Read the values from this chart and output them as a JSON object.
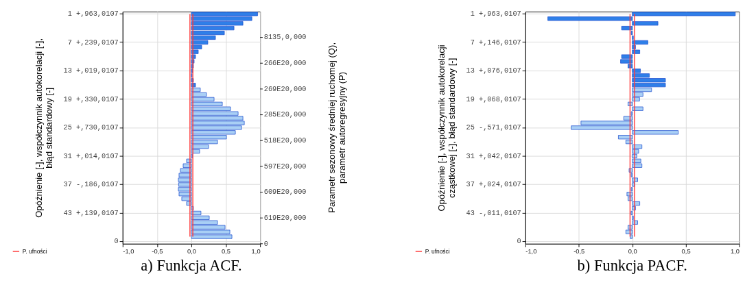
{
  "chart_data": [
    {
      "type": "bar",
      "orientation": "horizontal",
      "title": "a)   Funkcja ACF.",
      "ylabel": "Opóźnienie [-], współczynnik autokorelacji [-],\nbłąd standardowy [-]",
      "y2label": "Parametr sezonowy średniej ruchomej (Q),\nparametr autoregresyjny (P)",
      "categories": [
        "1  +,963,0107",
        null,
        null,
        null,
        null,
        null,
        "7  +,239,0107",
        null,
        null,
        null,
        null,
        null,
        "13  +,019,0107",
        null,
        null,
        null,
        null,
        null,
        "19  +,330,0107",
        null,
        null,
        null,
        null,
        null,
        "25  +,730,0107",
        null,
        null,
        null,
        null,
        null,
        "31  +,014,0107",
        null,
        null,
        null,
        null,
        null,
        "37  -,186,0107",
        null,
        null,
        null,
        null,
        null,
        "43  +,139,0107",
        null,
        null,
        null,
        null,
        null,
        "0"
      ],
      "values": [
        0.963,
        0.88,
        0.75,
        0.62,
        0.48,
        0.35,
        0.239,
        0.15,
        0.1,
        0.06,
        0.04,
        0.03,
        0.019,
        0.01,
        0.03,
        0.06,
        0.13,
        0.22,
        0.33,
        0.45,
        0.57,
        0.68,
        0.75,
        0.77,
        0.73,
        0.64,
        0.51,
        0.38,
        0.25,
        0.12,
        0.014,
        -0.07,
        -0.12,
        -0.16,
        -0.18,
        -0.19,
        -0.186,
        -0.19,
        -0.18,
        -0.14,
        -0.07,
        0.03,
        0.139,
        0.26,
        0.38,
        0.49,
        0.56,
        0.59,
        null
      ],
      "colors": [
        "#2f7fe8",
        "#2f7fe8",
        "#2f7fe8",
        "#2f7fe8",
        "#2f7fe8",
        "#2f7fe8",
        "#2f7fe8",
        "#2f7fe8",
        "#2f7fe8",
        "#2f7fe8",
        "#2f7fe8",
        "#2f7fe8",
        "#2f7fe8",
        "#2f7fe8",
        "#2f7fe8",
        "#2f7fe8",
        "#a9cff5",
        "#a9cff5",
        "#a9cff5",
        "#a9cff5",
        "#a9cff5",
        "#a9cff5",
        "#a9cff5",
        "#a9cff5",
        "#a9cff5",
        "#a9cff5",
        "#a9cff5",
        "#a9cff5",
        "#a9cff5",
        "#a9cff5",
        "#a9cff5",
        "#a9cff5",
        "#a9cff5",
        "#a9cff5",
        "#a9cff5",
        "#a9cff5",
        "#a9cff5",
        "#a9cff5",
        "#a9cff5",
        "#a9cff5",
        "#a9cff5",
        "#a9cff5",
        "#a9cff5",
        "#a9cff5",
        "#a9cff5",
        "#a9cff5",
        "#a9cff5",
        "#a9cff5",
        "#a9cff5"
      ],
      "xlim": [
        -1,
        1
      ],
      "xticks": [
        {
          "value": -1,
          "label": "-1,0"
        },
        {
          "value": -0.5,
          "label": "-0,5"
        },
        {
          "value": 0,
          "label": "0,0"
        },
        {
          "value": 0.5,
          "label": "0,5"
        },
        {
          "value": 1,
          "label": "1,0"
        }
      ],
      "annotations": [
        "8135,0,000",
        "266E20,000",
        "269E20,000",
        "285E20,000",
        "518E20,000",
        "597E20,000",
        "609E20,000",
        "619E20,000",
        "0"
      ],
      "ref_lines": [
        {
          "axis": "x",
          "value": -0.021,
          "label": "P. ufności",
          "color": "#ff3b3b"
        },
        {
          "axis": "x",
          "value": 0.021,
          "label": null,
          "color": "#ff3b3b"
        }
      ],
      "grid": true,
      "legend": "bottom left"
    },
    {
      "type": "bar",
      "orientation": "horizontal",
      "title": "b)   Funkcja PACF.",
      "ylabel": "Opóźnienie [-], współczynnik autokorelacji\ncząstkowej [-], błąd standardowy [-]",
      "categories": [
        "1  +,963,0107",
        null,
        null,
        null,
        null,
        null,
        "7  +,146,0107",
        null,
        null,
        null,
        null,
        null,
        "13  +,076,0107",
        null,
        null,
        null,
        null,
        null,
        "19  +,068,0107",
        null,
        null,
        null,
        null,
        null,
        "25  -,571,0107",
        null,
        null,
        null,
        null,
        null,
        "31  +,042,0107",
        null,
        null,
        null,
        null,
        null,
        "37  +,024,0107",
        null,
        null,
        null,
        null,
        null,
        "43  -,011,0107",
        null,
        null,
        null,
        null,
        null,
        "0"
      ],
      "values": [
        0.963,
        -0.79,
        0.24,
        -0.1,
        -0.01,
        0.01,
        0.146,
        0.03,
        0.07,
        -0.1,
        -0.11,
        -0.04,
        0.076,
        0.16,
        0.31,
        0.31,
        0.18,
        0.1,
        0.068,
        -0.04,
        0.1,
        -0.01,
        -0.08,
        -0.48,
        -0.571,
        0.43,
        -0.13,
        -0.06,
        0.09,
        0.06,
        0.042,
        0.08,
        0.09,
        -0.03,
        -0.01,
        0.05,
        0.024,
        -0.01,
        -0.05,
        -0.04,
        0.07,
        0.03,
        -0.011,
        0.01,
        0.05,
        -0.04,
        -0.06,
        -0.02,
        null
      ],
      "colors": [
        "#2f7fe8",
        "#2f7fe8",
        "#2f7fe8",
        "#2f7fe8",
        "#2f7fe8",
        "#2f7fe8",
        "#2f7fe8",
        "#2f7fe8",
        "#2f7fe8",
        "#2f7fe8",
        "#2f7fe8",
        "#2f7fe8",
        "#2f7fe8",
        "#2f7fe8",
        "#2f7fe8",
        "#2f7fe8",
        "#a9cff5",
        "#a9cff5",
        "#a9cff5",
        "#a9cff5",
        "#a9cff5",
        "#a9cff5",
        "#a9cff5",
        "#a9cff5",
        "#a9cff5",
        "#a9cff5",
        "#a9cff5",
        "#a9cff5",
        "#a9cff5",
        "#a9cff5",
        "#a9cff5",
        "#a9cff5",
        "#a9cff5",
        "#a9cff5",
        "#a9cff5",
        "#a9cff5",
        "#a9cff5",
        "#a9cff5",
        "#a9cff5",
        "#a9cff5",
        "#a9cff5",
        "#a9cff5",
        "#a9cff5",
        "#a9cff5",
        "#a9cff5",
        "#a9cff5",
        "#a9cff5",
        "#a9cff5",
        "#a9cff5"
      ],
      "xlim": [
        -1,
        1
      ],
      "xticks": [
        {
          "value": -1,
          "label": "-1,0"
        },
        {
          "value": -0.5,
          "label": "-0,5"
        },
        {
          "value": 0,
          "label": "0,0"
        },
        {
          "value": 0.5,
          "label": "0,5"
        },
        {
          "value": 1,
          "label": "1,0"
        }
      ],
      "ref_lines": [
        {
          "axis": "x",
          "value": -0.021,
          "label": "P. ufności",
          "color": "#ff3b3b"
        },
        {
          "axis": "x",
          "value": 0.021,
          "label": null,
          "color": "#ff3b3b"
        }
      ],
      "grid": true,
      "legend": "bottom left"
    }
  ]
}
